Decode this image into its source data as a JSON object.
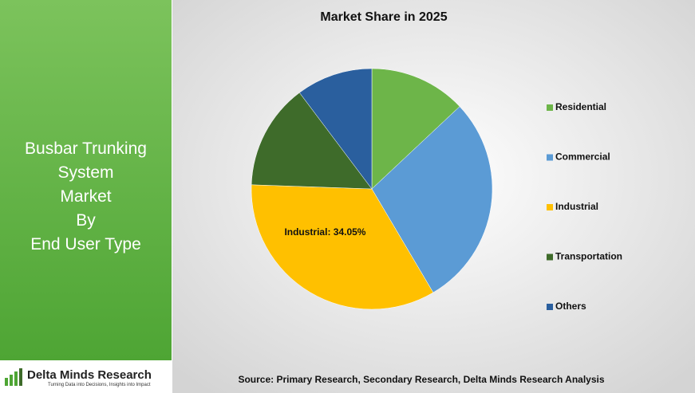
{
  "left_panel": {
    "title_lines": [
      "Busbar Trunking",
      "System",
      "Market",
      "By",
      "End User Type"
    ],
    "logo_name": "Delta Minds Research",
    "logo_tagline": "Turning Data into Decisions, Insights into Impact"
  },
  "chart_data": {
    "type": "pie",
    "title": "Market Share in 2025",
    "categories": [
      "Residential",
      "Commercial",
      "Industrial",
      "Transportation",
      "Others"
    ],
    "values": [
      13,
      28.5,
      34.05,
      14.2,
      10.25
    ],
    "value_labels": [
      null,
      null,
      "Industrial: 34.05%",
      null,
      null
    ],
    "colors": [
      "#6db549",
      "#5b9bd5",
      "#ffc000",
      "#3e6b2a",
      "#2a5f9e"
    ],
    "legend": "right",
    "source": "Source: Primary Research, Secondary Research, Delta Minds Research Analysis"
  }
}
